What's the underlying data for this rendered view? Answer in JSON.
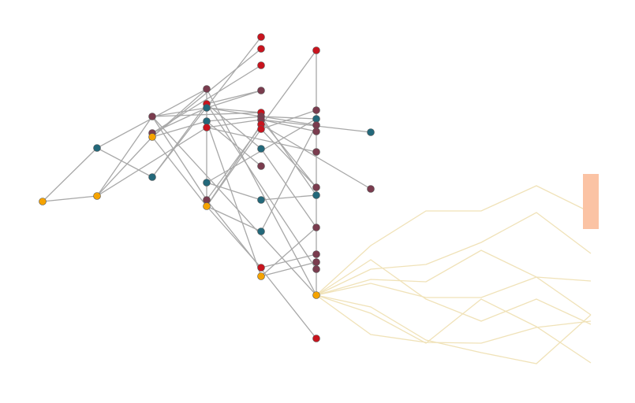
{
  "colors": {
    "background": "#ffffff",
    "edge": "#a8a8a8",
    "bundle": "#f0e2b8",
    "bar": "#fbc3a4",
    "node_outline": "#555555",
    "node_types": {
      "orange": "#f5a300",
      "teal": "#23687a",
      "maroon": "#7a3c4e",
      "red": "#c8141e"
    }
  },
  "nodes": [
    {
      "id": "n1",
      "type": "orange"
    },
    {
      "id": "n2",
      "type": "orange"
    },
    {
      "id": "n3",
      "type": "teal"
    },
    {
      "id": "n4",
      "type": "maroon"
    },
    {
      "id": "n5",
      "type": "maroon"
    },
    {
      "id": "n6",
      "type": "orange"
    },
    {
      "id": "n7",
      "type": "teal"
    },
    {
      "id": "n8",
      "type": "maroon"
    },
    {
      "id": "n9",
      "type": "red"
    },
    {
      "id": "n10",
      "type": "teal"
    },
    {
      "id": "n11",
      "type": "teal"
    },
    {
      "id": "n12",
      "type": "red"
    },
    {
      "id": "n13",
      "type": "teal"
    },
    {
      "id": "n14",
      "type": "maroon"
    },
    {
      "id": "n15",
      "type": "orange"
    },
    {
      "id": "n16",
      "type": "red"
    },
    {
      "id": "n17",
      "type": "red"
    },
    {
      "id": "n18",
      "type": "red"
    },
    {
      "id": "n19",
      "type": "maroon"
    },
    {
      "id": "n20",
      "type": "red"
    },
    {
      "id": "n21",
      "type": "maroon"
    },
    {
      "id": "n22",
      "type": "maroon"
    },
    {
      "id": "n23",
      "type": "red"
    },
    {
      "id": "n24",
      "type": "red"
    },
    {
      "id": "n25",
      "type": "teal"
    },
    {
      "id": "n26",
      "type": "maroon"
    },
    {
      "id": "n27",
      "type": "teal"
    },
    {
      "id": "n28",
      "type": "teal"
    },
    {
      "id": "n29",
      "type": "red"
    },
    {
      "id": "n30",
      "type": "orange"
    },
    {
      "id": "n31",
      "type": "red"
    },
    {
      "id": "n32",
      "type": "maroon"
    },
    {
      "id": "n33",
      "type": "teal"
    },
    {
      "id": "n34",
      "type": "maroon"
    },
    {
      "id": "n35",
      "type": "maroon"
    },
    {
      "id": "n36",
      "type": "maroon"
    },
    {
      "id": "n37",
      "type": "maroon"
    },
    {
      "id": "n38",
      "type": "teal"
    },
    {
      "id": "n39",
      "type": "maroon"
    },
    {
      "id": "n40",
      "type": "maroon"
    },
    {
      "id": "n41",
      "type": "maroon"
    },
    {
      "id": "n42",
      "type": "maroon"
    },
    {
      "id": "n43",
      "type": "orange"
    },
    {
      "id": "n44",
      "type": "red"
    },
    {
      "id": "n45",
      "type": "teal"
    },
    {
      "id": "n46",
      "type": "maroon"
    }
  ],
  "edges": [
    [
      "n1",
      "n2"
    ],
    [
      "n1",
      "n3"
    ],
    [
      "n3",
      "n7"
    ],
    [
      "n3",
      "n8"
    ],
    [
      "n2",
      "n4"
    ],
    [
      "n2",
      "n12"
    ],
    [
      "n2",
      "n6"
    ],
    [
      "n7",
      "n9"
    ],
    [
      "n7",
      "n16"
    ],
    [
      "n4",
      "n10"
    ],
    [
      "n4",
      "n20"
    ],
    [
      "n4",
      "n14"
    ],
    [
      "n4",
      "n43"
    ],
    [
      "n6",
      "n17"
    ],
    [
      "n6",
      "n11"
    ],
    [
      "n6",
      "n8"
    ],
    [
      "n6",
      "n15"
    ],
    [
      "n5",
      "n10"
    ],
    [
      "n5",
      "n18"
    ],
    [
      "n8",
      "n15"
    ],
    [
      "n8",
      "n43"
    ],
    [
      "n10",
      "n20"
    ],
    [
      "n10",
      "n19"
    ],
    [
      "n10",
      "n34"
    ],
    [
      "n9",
      "n19"
    ],
    [
      "n9",
      "n25"
    ],
    [
      "n9",
      "n42"
    ],
    [
      "n12",
      "n22"
    ],
    [
      "n12",
      "n36"
    ],
    [
      "n11",
      "n21"
    ],
    [
      "n11",
      "n26"
    ],
    [
      "n11",
      "n30"
    ],
    [
      "n13",
      "n27"
    ],
    [
      "n13",
      "n33"
    ],
    [
      "n14",
      "n31"
    ],
    [
      "n14",
      "n44"
    ],
    [
      "n15",
      "n23"
    ],
    [
      "n15",
      "n24"
    ],
    [
      "n15",
      "n28"
    ],
    [
      "n15",
      "n29"
    ],
    [
      "n22",
      "n35"
    ],
    [
      "n22",
      "n45"
    ],
    [
      "n22",
      "n37"
    ],
    [
      "n21",
      "n33"
    ],
    [
      "n21",
      "n38"
    ],
    [
      "n23",
      "n46"
    ],
    [
      "n24",
      "n32"
    ],
    [
      "n24",
      "n37"
    ],
    [
      "n27",
      "n38"
    ],
    [
      "n25",
      "n39"
    ],
    [
      "n28",
      "n34"
    ],
    [
      "n29",
      "n40"
    ],
    [
      "n30",
      "n41"
    ],
    [
      "n30",
      "n39"
    ],
    [
      "n31",
      "n43"
    ]
  ],
  "bundle_count": 8
}
